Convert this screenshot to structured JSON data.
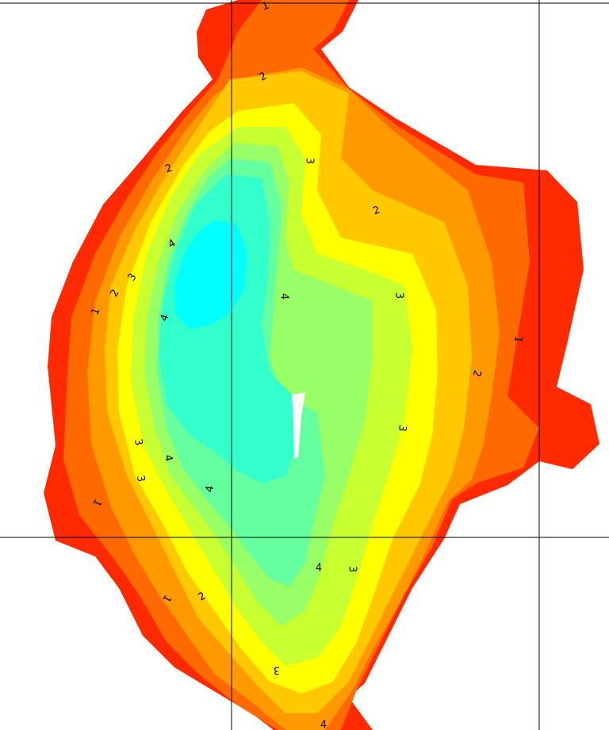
{
  "map": {
    "contour_labels": [
      1,
      2,
      2,
      3,
      2,
      4,
      3,
      2,
      1,
      4,
      3,
      4,
      1,
      2,
      3,
      3,
      4,
      3,
      1,
      4,
      4,
      3,
      1,
      2,
      3,
      4
    ]
  }
}
